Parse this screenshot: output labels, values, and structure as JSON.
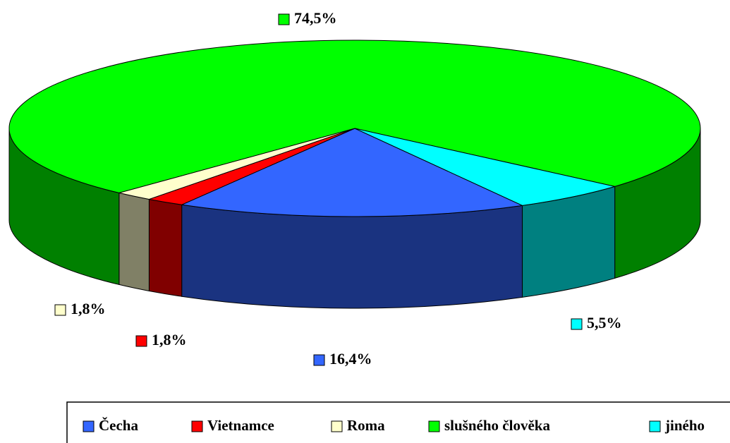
{
  "chart_data": {
    "type": "pie3d",
    "categories": [
      "Čecha",
      "Vietnamce",
      "Roma",
      "slušného člověka",
      "jiného"
    ],
    "values": [
      16.4,
      1.8,
      1.8,
      74.5,
      5.5
    ],
    "value_labels": [
      "16,4%",
      "1,8%",
      "1,8%",
      "74,5%",
      "5,5%"
    ],
    "colors": [
      "#3366ff",
      "#ff0000",
      "#ffffcc",
      "#00ff00",
      "#00ffff"
    ],
    "legend": "bottom"
  }
}
